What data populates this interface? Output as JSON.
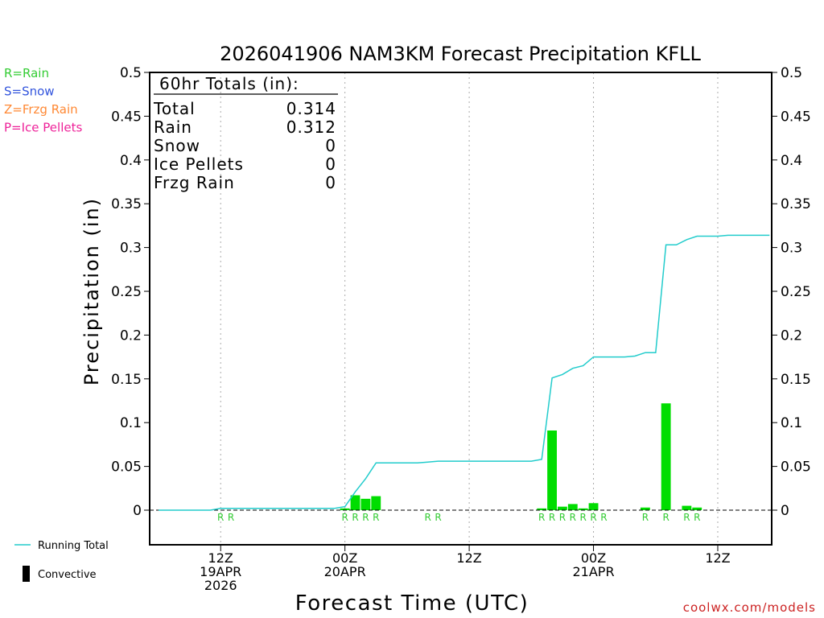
{
  "title": "2026041906 NAM3KM Forecast Precipitation KFLL",
  "ylabel": "Precipitation (in)",
  "xlabel": "Forecast Time (UTC)",
  "credit": "coolwx.com/models",
  "legend_types": [
    {
      "label": "R=Rain",
      "color": "#33cc33"
    },
    {
      "label": "S=Snow",
      "color": "#3355dd"
    },
    {
      "label": "Z=Frzg Rain",
      "color": "#ff8833"
    },
    {
      "label": "P=Ice Pellets",
      "color": "#ee2299"
    }
  ],
  "legend_bottom": {
    "running_total": "Running Total",
    "convective": "Convective"
  },
  "totals": {
    "header": "60hr Totals (in):",
    "rows": [
      {
        "label": "Total",
        "value": "0.314"
      },
      {
        "label": "Rain",
        "value": "0.312"
      },
      {
        "label": "Snow",
        "value": "0"
      },
      {
        "label": "Ice Pellets",
        "value": "0"
      },
      {
        "label": "Frzg Rain",
        "value": "0"
      }
    ]
  },
  "colors": {
    "bar": "#00dd00",
    "line": "#22cccc",
    "grid": "#aaaaaa",
    "rain_marker": "#33cc33",
    "credit": "#cc2222"
  },
  "chart_data": {
    "type": "bar",
    "x_unit": "forecast hour",
    "xlim": [
      0,
      59
    ],
    "ylim": [
      -0.04,
      0.5
    ],
    "yticks": [
      "0",
      "0.05",
      "0.1",
      "0.15",
      "0.2",
      "0.25",
      "0.3",
      "0.35",
      "0.4",
      "0.45",
      "0.5"
    ],
    "xticks": [
      {
        "hour": 6,
        "lines": [
          "12Z",
          "19APR",
          "2026"
        ]
      },
      {
        "hour": 18,
        "lines": [
          "00Z",
          "20APR"
        ]
      },
      {
        "hour": 30,
        "lines": [
          "12Z"
        ]
      },
      {
        "hour": 42,
        "lines": [
          "00Z",
          "21APR"
        ]
      },
      {
        "hour": 54,
        "lines": [
          "12Z"
        ]
      }
    ],
    "bars": [
      {
        "hour": 18,
        "value": 0.002
      },
      {
        "hour": 19,
        "value": 0.017
      },
      {
        "hour": 20,
        "value": 0.013
      },
      {
        "hour": 21,
        "value": 0.016
      },
      {
        "hour": 37,
        "value": 0.002
      },
      {
        "hour": 38,
        "value": 0.091
      },
      {
        "hour": 39,
        "value": 0.004
      },
      {
        "hour": 40,
        "value": 0.007
      },
      {
        "hour": 41,
        "value": 0.002
      },
      {
        "hour": 42,
        "value": 0.008
      },
      {
        "hour": 47,
        "value": 0.003
      },
      {
        "hour": 49,
        "value": 0.122
      },
      {
        "hour": 51,
        "value": 0.005
      },
      {
        "hour": 52,
        "value": 0.003
      }
    ],
    "running_total": [
      [
        0,
        0
      ],
      [
        5,
        0
      ],
      [
        6,
        0.002
      ],
      [
        17,
        0.002
      ],
      [
        18,
        0.004
      ],
      [
        19,
        0.021
      ],
      [
        20,
        0.036
      ],
      [
        21,
        0.054
      ],
      [
        25,
        0.054
      ],
      [
        26,
        0.055
      ],
      [
        27,
        0.056
      ],
      [
        36,
        0.056
      ],
      [
        37,
        0.058
      ],
      [
        38,
        0.151
      ],
      [
        39,
        0.155
      ],
      [
        40,
        0.162
      ],
      [
        41,
        0.165
      ],
      [
        42,
        0.175
      ],
      [
        45,
        0.175
      ],
      [
        46,
        0.176
      ],
      [
        47,
        0.18
      ],
      [
        48,
        0.18
      ],
      [
        49,
        0.303
      ],
      [
        50,
        0.303
      ],
      [
        51,
        0.309
      ],
      [
        52,
        0.313
      ],
      [
        54,
        0.313
      ],
      [
        55,
        0.314
      ],
      [
        59,
        0.314
      ]
    ],
    "type_markers": [
      {
        "hour": 6,
        "label": "R"
      },
      {
        "hour": 7,
        "label": "R"
      },
      {
        "hour": 18,
        "label": "R"
      },
      {
        "hour": 19,
        "label": "R"
      },
      {
        "hour": 20,
        "label": "R"
      },
      {
        "hour": 21,
        "label": "R"
      },
      {
        "hour": 26,
        "label": "R"
      },
      {
        "hour": 27,
        "label": "R"
      },
      {
        "hour": 37,
        "label": "R"
      },
      {
        "hour": 38,
        "label": "R"
      },
      {
        "hour": 39,
        "label": "R"
      },
      {
        "hour": 40,
        "label": "R"
      },
      {
        "hour": 41,
        "label": "R"
      },
      {
        "hour": 42,
        "label": "R"
      },
      {
        "hour": 43,
        "label": "R"
      },
      {
        "hour": 47,
        "label": "R"
      },
      {
        "hour": 49,
        "label": "R"
      },
      {
        "hour": 51,
        "label": "R"
      },
      {
        "hour": 52,
        "label": "R"
      }
    ]
  }
}
